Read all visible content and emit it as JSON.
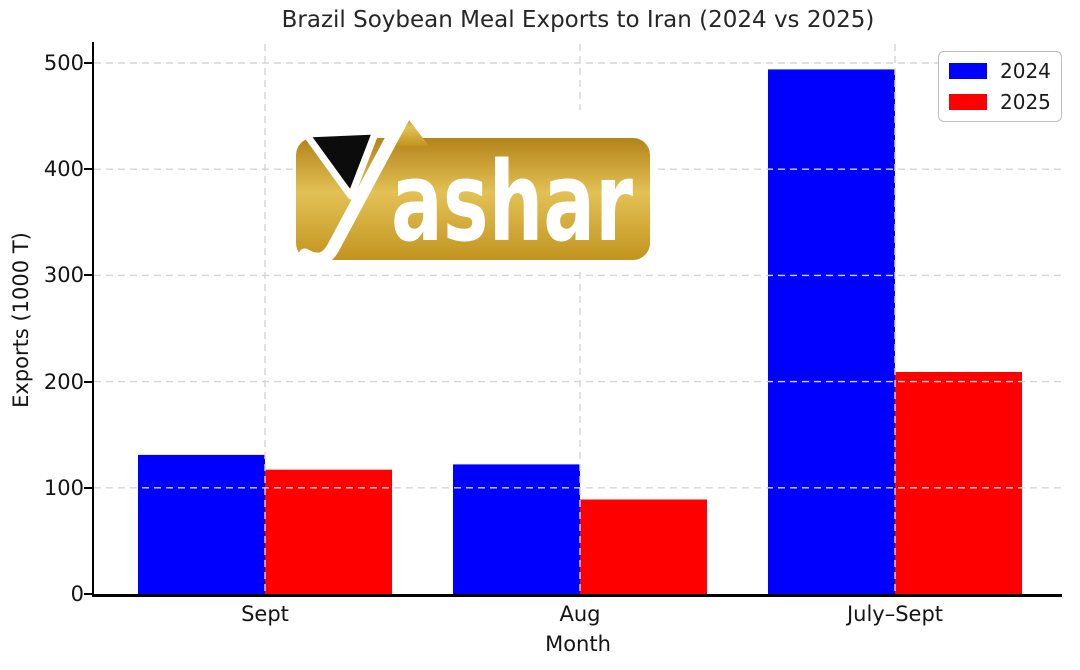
{
  "chart_data": {
    "type": "bar",
    "title": "Brazil Soybean Meal Exports to Iran (2024 vs 2025)",
    "xlabel": "Month",
    "ylabel": "Exports (1000 T)",
    "categories": [
      "Sept",
      "Aug",
      "July–Sept"
    ],
    "series": [
      {
        "name": "2024",
        "color": "#0000ff",
        "values": [
          131,
          122,
          494
        ]
      },
      {
        "name": "2025",
        "color": "#ff0000",
        "values": [
          117,
          89,
          209
        ]
      }
    ],
    "ylim": [
      0,
      500
    ],
    "yticks": [
      0,
      100,
      200,
      300,
      400,
      500
    ],
    "grid": {
      "style": "dashed",
      "color": "#d6d6d6",
      "drawn_above_bars": true
    },
    "legend": {
      "position": "upper right",
      "entries": [
        "2024",
        "2025"
      ]
    },
    "axis_color": "#000000",
    "background": "#ffffff"
  },
  "watermark": {
    "brand": "Yashar",
    "visible_text": "ashar",
    "gold_top": "#b3831a",
    "gold_light": "#e3c155",
    "gold_bottom": "#c2941f",
    "mark_black": "#0c0c0c"
  }
}
